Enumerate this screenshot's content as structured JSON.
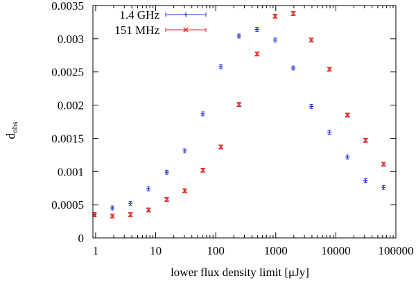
{
  "chart_data": {
    "type": "scatter",
    "title": "",
    "xlabel": "lower flux density limit [μJy]",
    "ylabel_main": "d",
    "ylabel_sub": "obs",
    "xscale": "log",
    "xlim": [
      0.9,
      100000
    ],
    "ylim": [
      0,
      0.0035
    ],
    "grid": false,
    "legend_position": "top-left",
    "x_ticks": [
      {
        "value": 1,
        "label": "1"
      },
      {
        "value": 10,
        "label": "10"
      },
      {
        "value": 100,
        "label": "100"
      },
      {
        "value": 1000,
        "label": "1000"
      },
      {
        "value": 10000,
        "label": "10000"
      },
      {
        "value": 100000,
        "label": "100000"
      }
    ],
    "y_ticks": [
      {
        "value": 0,
        "label": "0"
      },
      {
        "value": 0.0005,
        "label": "0.0005"
      },
      {
        "value": 0.001,
        "label": "0.001"
      },
      {
        "value": 0.0015,
        "label": "0.0015"
      },
      {
        "value": 0.002,
        "label": "0.002"
      },
      {
        "value": 0.0025,
        "label": "0.0025"
      },
      {
        "value": 0.003,
        "label": "0.003"
      },
      {
        "value": 0.0035,
        "label": "0.0035"
      }
    ],
    "series": [
      {
        "name": "1.4 GHz",
        "marker": "plus",
        "color": "#1f2bd6",
        "x": [
          0.95,
          1.9,
          3.8,
          7.6,
          15.3,
          30.5,
          61,
          122,
          244,
          488,
          977,
          1953,
          3906,
          7813,
          15625,
          31250,
          62500
        ],
        "y": [
          0.00035,
          0.00045,
          0.00052,
          0.00074,
          0.00099,
          0.00131,
          0.00187,
          0.00258,
          0.00304,
          0.00314,
          0.00298,
          0.00256,
          0.00198,
          0.00159,
          0.00122,
          0.00086,
          0.00076
        ],
        "err": 3e-05
      },
      {
        "name": "151 MHz",
        "marker": "cross",
        "color": "#e02020",
        "x": [
          0.95,
          1.9,
          3.8,
          7.6,
          15.3,
          30.5,
          61,
          122,
          244,
          488,
          977,
          1953,
          3906,
          7813,
          15625,
          31250,
          62500
        ],
        "y": [
          0.00035,
          0.00033,
          0.00035,
          0.00042,
          0.00058,
          0.00071,
          0.00102,
          0.00137,
          0.00201,
          0.00277,
          0.00334,
          0.00338,
          0.00298,
          0.00254,
          0.00185,
          0.00147,
          0.00111
        ],
        "err": 3e-05
      }
    ]
  }
}
